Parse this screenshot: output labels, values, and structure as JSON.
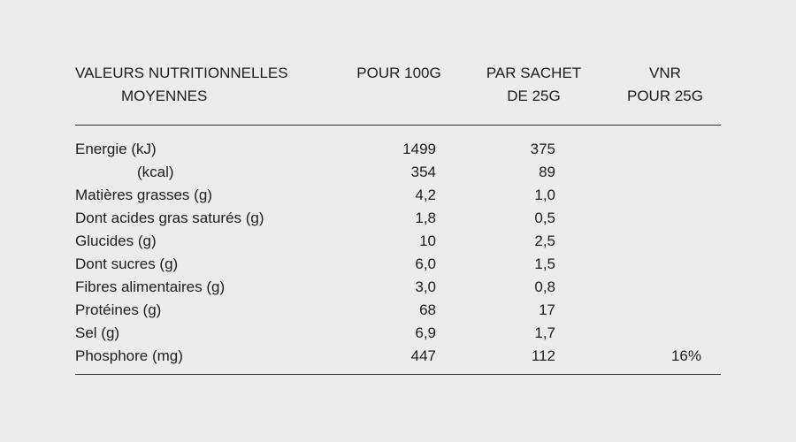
{
  "page": {
    "background_color": "#ececec",
    "text_color": "#1d1d1d",
    "rule_color": "#2f2f2f"
  },
  "table": {
    "header": {
      "label_line1": "VALEURS NUTRITIONNELLES",
      "label_line2": "MOYENNES",
      "per_100g": "POUR 100G",
      "sachet_line1": "PAR SACHET",
      "sachet_line2": "DE 25G",
      "vnr_line1": "VNR",
      "vnr_line2": "POUR 25G"
    },
    "rows": [
      {
        "label": "Energie (kJ)",
        "per_100g": "1499",
        "per_sachet_25g": "375",
        "vnr_pour_25g": ""
      },
      {
        "label": "(kcal)",
        "per_100g": "354",
        "per_sachet_25g": "89",
        "vnr_pour_25g": ""
      },
      {
        "label": "Matières grasses (g)",
        "per_100g": "4,2",
        "per_sachet_25g": "1,0",
        "vnr_pour_25g": ""
      },
      {
        "label": "Dont acides gras saturés (g)",
        "per_100g": "1,8",
        "per_sachet_25g": "0,5",
        "vnr_pour_25g": ""
      },
      {
        "label": "Glucides (g)",
        "per_100g": "10",
        "per_sachet_25g": "2,5",
        "vnr_pour_25g": ""
      },
      {
        "label": "Dont sucres (g)",
        "per_100g": "6,0",
        "per_sachet_25g": "1,5",
        "vnr_pour_25g": ""
      },
      {
        "label": "Fibres alimentaires (g)",
        "per_100g": "3,0",
        "per_sachet_25g": "0,8",
        "vnr_pour_25g": ""
      },
      {
        "label": "Protéines (g)",
        "per_100g": "68",
        "per_sachet_25g": "17",
        "vnr_pour_25g": ""
      },
      {
        "label": "Sel (g)",
        "per_100g": "6,9",
        "per_sachet_25g": "1,7",
        "vnr_pour_25g": ""
      },
      {
        "label": "Phosphore (mg)",
        "per_100g": "447",
        "per_sachet_25g": "112",
        "vnr_pour_25g": "16%"
      }
    ]
  }
}
